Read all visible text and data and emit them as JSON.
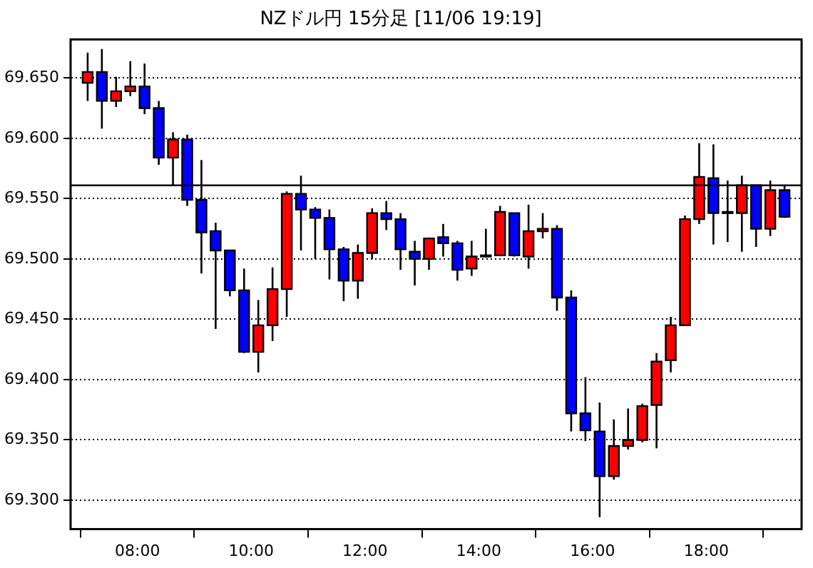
{
  "chart_data": {
    "type": "candlestick",
    "title": "NZドル円 15分足 [11/06 19:19]",
    "x": [
      7.125,
      7.375,
      7.625,
      7.875,
      8.125,
      8.375,
      8.625,
      8.875,
      9.125,
      9.375,
      9.625,
      9.875,
      10.125,
      10.375,
      10.625,
      10.875,
      11.125,
      11.375,
      11.625,
      11.875,
      12.125,
      12.375,
      12.625,
      12.875,
      13.125,
      13.375,
      13.625,
      13.875,
      14.125,
      14.375,
      14.625,
      14.875,
      15.125,
      15.375,
      15.625,
      15.875,
      16.125,
      16.375,
      16.625,
      16.875,
      17.125,
      17.375,
      17.625,
      17.875,
      18.125,
      18.375,
      18.625,
      18.875,
      19.125,
      19.375
    ],
    "ohlc": [
      [
        69.646,
        69.671,
        69.631,
        69.655
      ],
      [
        69.655,
        69.674,
        69.608,
        69.631
      ],
      [
        69.631,
        69.651,
        69.626,
        69.639
      ],
      [
        69.639,
        69.664,
        69.635,
        69.643
      ],
      [
        69.643,
        69.662,
        69.62,
        69.625
      ],
      [
        69.625,
        69.631,
        69.578,
        69.584
      ],
      [
        69.584,
        69.605,
        69.561,
        69.599
      ],
      [
        69.599,
        69.603,
        69.544,
        69.549
      ],
      [
        69.549,
        69.582,
        69.488,
        69.522
      ],
      [
        69.523,
        69.53,
        69.442,
        69.507
      ],
      [
        69.507,
        69.507,
        69.469,
        69.474
      ],
      [
        69.474,
        69.492,
        69.422,
        69.423
      ],
      [
        69.423,
        69.466,
        69.406,
        69.445
      ],
      [
        69.445,
        69.493,
        69.432,
        69.475
      ],
      [
        69.475,
        69.556,
        69.452,
        69.554
      ],
      [
        69.554,
        69.569,
        69.507,
        69.541
      ],
      [
        69.541,
        69.543,
        69.5,
        69.534
      ],
      [
        69.534,
        69.541,
        69.483,
        69.508
      ],
      [
        69.508,
        69.51,
        69.465,
        69.482
      ],
      [
        69.482,
        69.512,
        69.467,
        69.505
      ],
      [
        69.505,
        69.542,
        69.5,
        69.538
      ],
      [
        69.538,
        69.548,
        69.524,
        69.533
      ],
      [
        69.533,
        69.538,
        69.491,
        69.508
      ],
      [
        69.506,
        69.515,
        69.478,
        69.5
      ],
      [
        69.5,
        69.517,
        69.491,
        69.517
      ],
      [
        69.518,
        69.529,
        69.502,
        69.513
      ],
      [
        69.513,
        69.515,
        69.482,
        69.491
      ],
      [
        69.492,
        69.515,
        69.486,
        69.502
      ],
      [
        69.502,
        69.525,
        69.501,
        69.503
      ],
      [
        69.503,
        69.544,
        69.503,
        69.539
      ],
      [
        69.538,
        69.538,
        69.502,
        69.503
      ],
      [
        69.502,
        69.545,
        69.492,
        69.523
      ],
      [
        69.523,
        69.538,
        69.517,
        69.525
      ],
      [
        69.525,
        69.528,
        69.457,
        69.468
      ],
      [
        69.468,
        69.474,
        69.357,
        69.372
      ],
      [
        69.372,
        69.402,
        69.349,
        69.358
      ],
      [
        69.357,
        69.381,
        69.286,
        69.32
      ],
      [
        69.32,
        69.367,
        69.317,
        69.345
      ],
      [
        69.345,
        69.376,
        69.342,
        69.35
      ],
      [
        69.35,
        69.38,
        69.348,
        69.378
      ],
      [
        69.379,
        69.422,
        69.343,
        69.415
      ],
      [
        69.416,
        69.452,
        69.406,
        69.445
      ],
      [
        69.445,
        69.536,
        69.445,
        69.533
      ],
      [
        69.533,
        69.596,
        69.529,
        69.568
      ],
      [
        69.567,
        69.595,
        69.512,
        69.538
      ],
      [
        69.538,
        69.565,
        69.514,
        69.539
      ],
      [
        69.538,
        69.569,
        69.506,
        69.561
      ],
      [
        69.561,
        69.561,
        69.51,
        69.525
      ],
      [
        69.525,
        69.565,
        69.519,
        69.557
      ],
      [
        69.557,
        69.561,
        69.534,
        69.535
      ]
    ],
    "colors": [
      "#ff0000",
      "#0000ff",
      "#ff0000",
      "#ff0000",
      "#0000ff",
      "#0000ff",
      "#ff0000",
      "#0000ff",
      "#0000ff",
      "#0000ff",
      "#0000ff",
      "#0000ff",
      "#ff0000",
      "#ff0000",
      "#ff0000",
      "#0000ff",
      "#0000ff",
      "#0000ff",
      "#0000ff",
      "#ff0000",
      "#ff0000",
      "#0000ff",
      "#0000ff",
      "#0000ff",
      "#ff0000",
      "#0000ff",
      "#0000ff",
      "#ff0000",
      "#ff0000",
      "#ff0000",
      "#0000ff",
      "#ff0000",
      "#ff0000",
      "#0000ff",
      "#0000ff",
      "#0000ff",
      "#0000ff",
      "#ff0000",
      "#ff0000",
      "#ff0000",
      "#ff0000",
      "#ff0000",
      "#ff0000",
      "#ff0000",
      "#0000ff",
      "#ff0000",
      "#ff0000",
      "#0000ff",
      "#ff0000",
      "#0000ff"
    ],
    "xlim": [
      6.825,
      19.675
    ],
    "xticks": [
      {
        "value": 8,
        "label": "08:00"
      },
      {
        "value": 10,
        "label": "10:00"
      },
      {
        "value": 12,
        "label": "12:00"
      },
      {
        "value": 14,
        "label": "14:00"
      },
      {
        "value": 16,
        "label": "16:00"
      },
      {
        "value": 18,
        "label": "18:00"
      }
    ],
    "ylim": [
      69.276,
      69.682
    ],
    "yticks": [
      {
        "value": 69.3,
        "label": "69.300"
      },
      {
        "value": 69.35,
        "label": "69.350"
      },
      {
        "value": 69.4,
        "label": "69.400"
      },
      {
        "value": 69.45,
        "label": "69.450"
      },
      {
        "value": 69.5,
        "label": "69.500"
      },
      {
        "value": 69.55,
        "label": "69.550"
      },
      {
        "value": 69.6,
        "label": "69.600"
      },
      {
        "value": 69.65,
        "label": "69.650"
      }
    ],
    "ref_lines": [
      {
        "axis": "y",
        "value": 69.561,
        "color": "#000000"
      }
    ],
    "grid": "y",
    "legend": false
  }
}
